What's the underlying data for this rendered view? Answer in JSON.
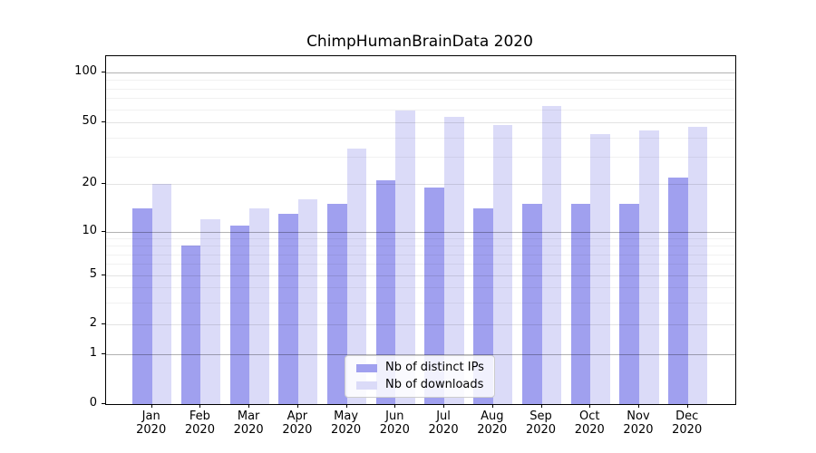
{
  "title": "ChimpHumanBrainData 2020",
  "chart_data": {
    "type": "bar",
    "title": "ChimpHumanBrainData 2020",
    "categories": [
      "Jan",
      "Feb",
      "Mar",
      "Apr",
      "May",
      "Jun",
      "Jul",
      "Aug",
      "Sep",
      "Oct",
      "Nov",
      "Dec"
    ],
    "category_year": "2020",
    "series": [
      {
        "name": "Nb of distinct IPs",
        "color": "#a0a0ef",
        "values": [
          14,
          8,
          11,
          13,
          15,
          21,
          19,
          14,
          15,
          15,
          15,
          22
        ]
      },
      {
        "name": "Nb of downloads",
        "color": "#dbdbf8",
        "values": [
          20,
          12,
          14,
          16,
          34,
          59,
          54,
          48,
          63,
          42,
          44,
          47
        ]
      }
    ],
    "yscale": "symlog",
    "ylim": [
      0,
      127
    ],
    "ytick_labels": [
      "0",
      "1",
      "2",
      "5",
      "10",
      "20",
      "50",
      "100"
    ],
    "ytick_values": [
      0,
      1,
      2,
      5,
      10,
      20,
      50,
      100
    ],
    "minor_grid_values": [
      3,
      4,
      6,
      7,
      8,
      9,
      30,
      40,
      60,
      70,
      80,
      90
    ],
    "grid": "on",
    "legend_position": "lower center",
    "xlabel": "",
    "ylabel": ""
  }
}
